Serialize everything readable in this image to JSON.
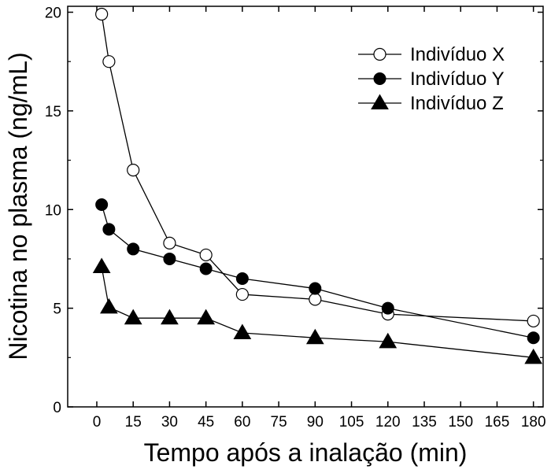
{
  "chart_data": {
    "type": "line",
    "title": "",
    "xlabel": "Tempo após a inalação (min)",
    "ylabel": "Nicotina no plasma (ng/mL)",
    "xlim": [
      -12,
      184
    ],
    "ylim": [
      0,
      20.3
    ],
    "xticks": [
      0,
      15,
      30,
      45,
      60,
      75,
      90,
      105,
      120,
      135,
      150,
      165,
      180
    ],
    "yticks": [
      0,
      5,
      10,
      15,
      20
    ],
    "grid": false,
    "legend_position": "top-right",
    "series": [
      {
        "name": "Indivíduo X",
        "marker": "open-circle",
        "x": [
          2,
          5,
          15,
          30,
          45,
          60,
          90,
          120,
          180
        ],
        "y": [
          19.9,
          17.5,
          12.0,
          8.3,
          7.7,
          5.7,
          5.45,
          4.7,
          4.35
        ]
      },
      {
        "name": "Indivíduo Y",
        "marker": "filled-circle",
        "x": [
          2,
          5,
          15,
          30,
          45,
          60,
          90,
          120,
          180
        ],
        "y": [
          10.25,
          9.0,
          8.0,
          7.5,
          7.0,
          6.5,
          6.0,
          5.0,
          3.5
        ]
      },
      {
        "name": "Indivíduo Z",
        "marker": "filled-triangle",
        "x": [
          2,
          5,
          15,
          30,
          45,
          60,
          90,
          120,
          180
        ],
        "y": [
          7.1,
          5.05,
          4.5,
          4.5,
          4.5,
          3.75,
          3.5,
          3.3,
          2.5
        ]
      }
    ]
  }
}
